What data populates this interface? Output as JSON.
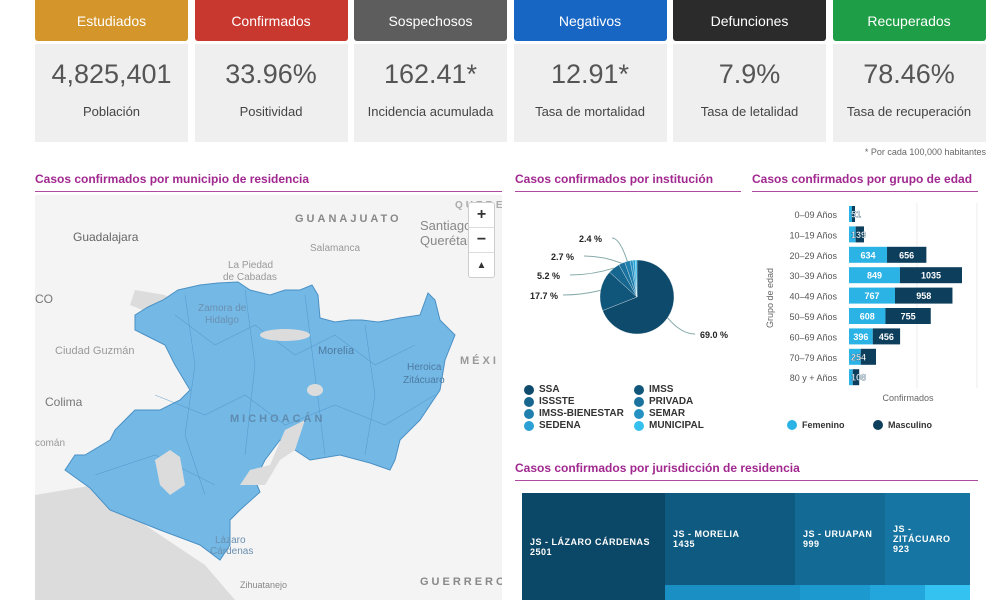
{
  "cards": [
    {
      "title": "Estudiados",
      "value": "4,825,401",
      "label": "Población",
      "color": "#d4952a"
    },
    {
      "title": "Confirmados",
      "value": "33.96%",
      "label": "Positividad",
      "color": "#c8382f"
    },
    {
      "title": "Sospechosos",
      "value": "162.41*",
      "label": "Incidencia acumulada",
      "color": "#5d5d5d"
    },
    {
      "title": "Negativos",
      "value": "12.91*",
      "label": "Tasa de mortalidad",
      "color": "#1766c3"
    },
    {
      "title": "Defunciones",
      "value": "7.9%",
      "label": "Tasa de letalidad",
      "color": "#2b2b2b"
    },
    {
      "title": "Recuperados",
      "value": "78.46%",
      "label": "Tasa de recuperación",
      "color": "#1f9e48"
    }
  ],
  "note": "* Por cada 100,000 habitantes",
  "map": {
    "title": "Casos confirmados por municipio de residencia",
    "labels": [
      "GUANAJUATO",
      "Santiago de",
      "Querétaro",
      "Guadalajara",
      "Salamanca",
      "La Piedad",
      "de Cabadas",
      "Zamora de",
      "Hidalgo",
      "Ciudad Guzmán",
      "Morelia",
      "Heroica",
      "Zitácuaro",
      "MÉXI",
      "Colima",
      "MICHOACÁN",
      "Lázaro",
      "Cárdenas",
      "Zihuatanejo",
      "GUERRERO",
      "CO",
      "comán",
      "QUERE"
    ],
    "zoom_in": "+",
    "zoom_out": "−",
    "compass": "▲"
  },
  "institution": {
    "title": "Casos confirmados por institución",
    "slices": [
      {
        "name": "SSA",
        "pct": 69.0,
        "label": "69.0 %",
        "color": "#0d4a6b"
      },
      {
        "name": "IMSS",
        "pct": 17.7,
        "label": "17.7 %",
        "color": "#10557a"
      },
      {
        "name": "ISSSTE",
        "pct": 5.2,
        "label": "5.2 %",
        "color": "#17668f"
      },
      {
        "name": "PRIVADA",
        "pct": 2.7,
        "label": "2.7 %",
        "color": "#1b729e"
      },
      {
        "name": "IMSS-BIENESTAR",
        "pct": 2.4,
        "label": "2.4 %",
        "color": "#1f80ad"
      },
      {
        "name": "SEMAR",
        "pct": 1.2,
        "label": "",
        "color": "#2591c2"
      },
      {
        "name": "SEDENA",
        "pct": 1.0,
        "label": "",
        "color": "#2aa0d4"
      },
      {
        "name": "MUNICIPAL",
        "pct": 0.8,
        "label": "",
        "color": "#36c0ee"
      }
    ]
  },
  "age": {
    "title": "Casos confirmados por grupo de edad",
    "ylabel": "Grupo de edad",
    "xlabel": "Confirmados",
    "legend": [
      {
        "name": "Femenino",
        "color": "#2bb3e6"
      },
      {
        "name": "Masculino",
        "color": "#0d3e5c"
      }
    ],
    "groups": [
      "0–09 Años",
      "10–19 Años",
      "20–29 Años",
      "30–39 Años",
      "40–49 Años",
      "50–59 Años",
      "60–69 Años",
      "70–79 Años",
      "80 y + Años"
    ],
    "femenino": [
      49,
      111,
      634,
      849,
      767,
      608,
      396,
      196,
      62
    ],
    "masculino": [
      51,
      139,
      656,
      1035,
      958,
      755,
      456,
      254,
      108
    ],
    "f_labels": [
      "",
      "",
      "634",
      "849",
      "767",
      "608",
      "396",
      "",
      ""
    ],
    "m_labels": [
      "51",
      "139",
      "656",
      "1035",
      "958",
      "755",
      "456",
      "254",
      "108"
    ]
  },
  "jurisdiction": {
    "title": "Casos confirmados por jurisdicción de residencia",
    "items": [
      {
        "name": "JS - LÁZARO CÁRDENAS",
        "value": "2501",
        "color": "#0b4766"
      },
      {
        "name": "JS - MORELIA",
        "value": "1435",
        "color": "#0f5a80"
      },
      {
        "name": "JS - URUAPAN",
        "value": "999",
        "color": "#136a94"
      },
      {
        "name": "JS - ZITÁCUARO",
        "value": "923",
        "color": "#1675a2"
      }
    ]
  }
}
